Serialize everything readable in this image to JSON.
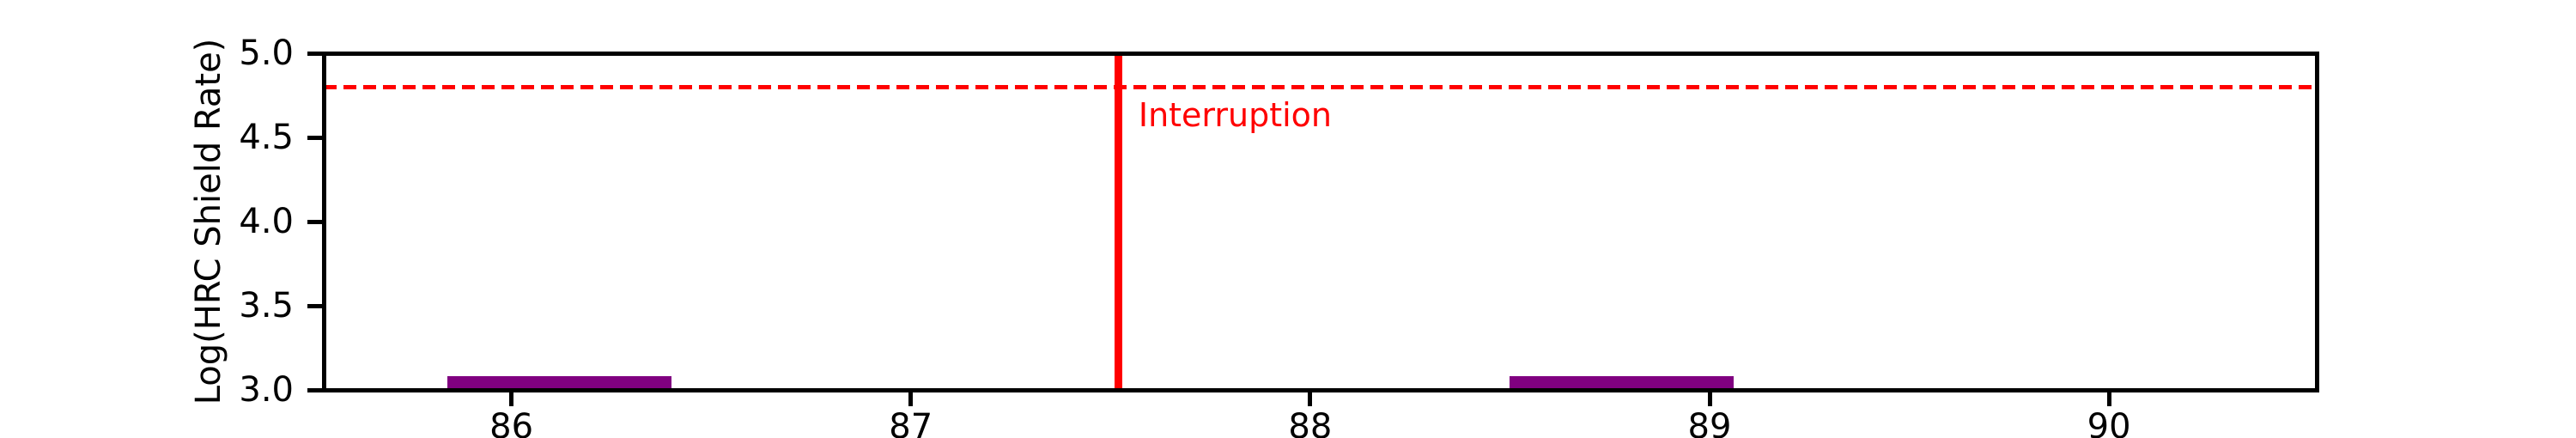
{
  "chart_data": {
    "type": "bar",
    "title": "",
    "xlabel": "",
    "ylabel": "Log(HRC Shield Rate)",
    "xlim": [
      85.53,
      90.52
    ],
    "ylim": [
      3.0,
      5.0
    ],
    "grid": false,
    "legend": null,
    "x_ticks": [
      {
        "value": 86,
        "label": "86"
      },
      {
        "value": 87,
        "label": "87"
      },
      {
        "value": 88,
        "label": "88"
      },
      {
        "value": 89,
        "label": "89"
      },
      {
        "value": 90,
        "label": "90"
      }
    ],
    "y_ticks": [
      {
        "value": 3.0,
        "label": "3.0"
      },
      {
        "value": 3.5,
        "label": "3.5"
      },
      {
        "value": 4.0,
        "label": "4.0"
      },
      {
        "value": 4.5,
        "label": "4.5"
      },
      {
        "value": 5.0,
        "label": "5.0"
      }
    ],
    "bars": [
      {
        "x_start": 85.84,
        "x_end": 86.4,
        "y_base": 3.0,
        "y_top": 3.08,
        "color": "#800080"
      },
      {
        "x_start": 88.5,
        "x_end": 89.06,
        "y_base": 3.0,
        "y_top": 3.08,
        "color": "#800080"
      }
    ],
    "reference_lines": {
      "hline": {
        "y": 4.8,
        "color": "#ff0000",
        "style": "dashed"
      },
      "vline": {
        "x": 87.52,
        "color": "#ff0000",
        "style": "solid"
      }
    },
    "annotation": {
      "text": "Interruption",
      "x": 87.57,
      "y": 4.73,
      "color": "#ff0000"
    }
  },
  "colors": {
    "bar_purple": "#800080",
    "line_red": "#ff0000",
    "axis_black": "#000000",
    "background": "#ffffff"
  }
}
